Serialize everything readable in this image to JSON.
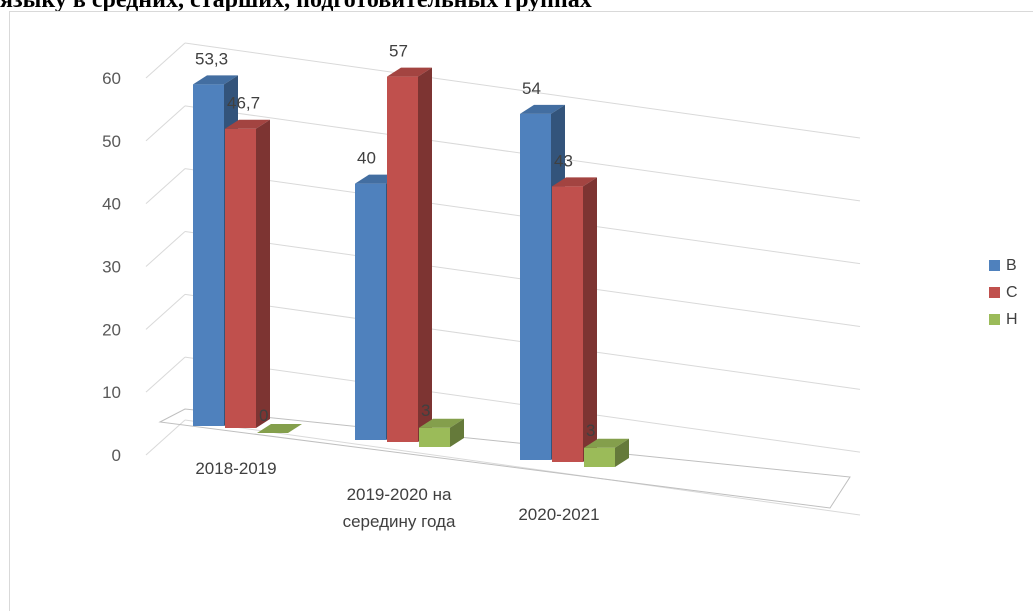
{
  "heading": "языку в средних, старших, подготовительных группах",
  "chart_data": {
    "type": "bar",
    "categories": [
      "2018-2019",
      "2019-2020 на|середину года",
      "2020-2021"
    ],
    "series": [
      {
        "name": "В",
        "values": [
          53.3,
          40,
          54
        ],
        "labels": [
          "53,3",
          "40",
          "54"
        ],
        "color": "#4f81bd"
      },
      {
        "name": "С",
        "values": [
          46.7,
          57,
          43
        ],
        "labels": [
          "46,7",
          "57",
          "43"
        ],
        "color": "#c0504d"
      },
      {
        "name": "Н",
        "values": [
          0,
          3,
          3
        ],
        "labels": [
          "0",
          "3",
          "3"
        ],
        "color": "#9bbb59"
      }
    ],
    "yticks": [
      "0",
      "10",
      "20",
      "30",
      "40",
      "50",
      "60"
    ],
    "ylim": [
      0,
      60
    ],
    "legend": "right",
    "grid": true
  }
}
